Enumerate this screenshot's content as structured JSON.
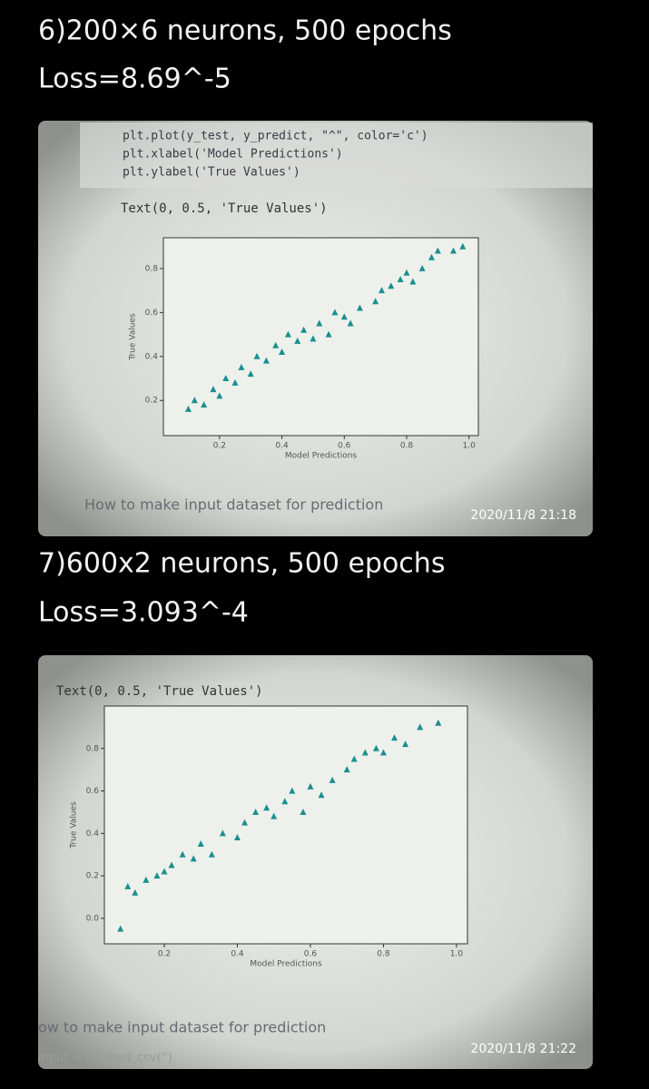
{
  "messages": [
    {
      "title": "6)200×6 neurons, 500 epochs",
      "loss": "Loss=8.69^-5",
      "photo": {
        "code": [
          "plt.plot(y_test, y_predict, \"^\", color='c')",
          "plt.xlabel('Model Predictions')",
          "plt.ylabel('True Values')"
        ],
        "output": "Text(0, 0.5, 'True Values')",
        "chart": {
          "type": "scatter",
          "x_label": "Model Predictions",
          "y_label": "True Values",
          "xlim": [
            0.02,
            1.03
          ],
          "ylim": [
            0.04,
            0.94
          ],
          "xticks": [
            0.2,
            0.4,
            0.6,
            0.8,
            {
              "value": 1,
              "label": "1.0"
            }
          ],
          "yticks": [
            0.2,
            0.4,
            0.6,
            0.8
          ],
          "color": "#1a8f8f",
          "x": [
            0.1,
            0.12,
            0.15,
            0.18,
            0.2,
            0.22,
            0.25,
            0.27,
            0.3,
            0.32,
            0.35,
            0.38,
            0.4,
            0.42,
            0.45,
            0.47,
            0.5,
            0.52,
            0.55,
            0.57,
            0.6,
            0.62,
            0.65,
            0.7,
            0.72,
            0.75,
            0.78,
            0.8,
            0.82,
            0.85,
            0.88,
            0.9,
            0.95,
            0.98
          ],
          "y": [
            0.16,
            0.2,
            0.18,
            0.25,
            0.22,
            0.3,
            0.28,
            0.35,
            0.32,
            0.4,
            0.38,
            0.45,
            0.42,
            0.5,
            0.47,
            0.52,
            0.48,
            0.55,
            0.5,
            0.6,
            0.58,
            0.55,
            0.62,
            0.65,
            0.7,
            0.72,
            0.75,
            0.78,
            0.74,
            0.8,
            0.85,
            0.88,
            0.88,
            0.9
          ]
        },
        "caption": "How to make input dataset for prediction"
      },
      "time": "2020/11/8  21:18"
    },
    {
      "title": "7)600x2 neurons, 500 epochs",
      "loss": "Loss=3.093^-4",
      "photo": {
        "output": "Text(0, 0.5, 'True Values')",
        "chart": {
          "type": "scatter",
          "x_label": "Model Predictions",
          "y_label": "True Values",
          "xlim": [
            0.036,
            1.03
          ],
          "ylim": [
            -0.12,
            1.0
          ],
          "xticks": [
            0.2,
            0.4,
            0.6,
            0.8,
            {
              "value": 1,
              "label": "1.0"
            }
          ],
          "yticks": [
            {
              "value": 0,
              "label": "0.0"
            },
            0.2,
            0.4,
            0.6,
            0.8
          ],
          "color": "#1a8f8f",
          "x": [
            0.08,
            0.1,
            0.12,
            0.15,
            0.18,
            0.2,
            0.22,
            0.25,
            0.28,
            0.3,
            0.33,
            0.36,
            0.4,
            0.42,
            0.45,
            0.48,
            0.5,
            0.53,
            0.55,
            0.58,
            0.6,
            0.63,
            0.66,
            0.7,
            0.72,
            0.75,
            0.78,
            0.8,
            0.83,
            0.86,
            0.9,
            0.95
          ],
          "y": [
            -0.05,
            0.15,
            0.12,
            0.18,
            0.2,
            0.22,
            0.25,
            0.3,
            0.28,
            0.35,
            0.3,
            0.4,
            0.38,
            0.45,
            0.5,
            0.52,
            0.48,
            0.55,
            0.6,
            0.5,
            0.62,
            0.58,
            0.65,
            0.7,
            0.75,
            0.78,
            0.8,
            0.78,
            0.85,
            0.82,
            0.9,
            0.92
          ]
        },
        "caption": "ow to make input dataset for prediction",
        "code_after": "input = pd.read_csv('')"
      },
      "time": "2020/11/8  21:22"
    }
  ]
}
